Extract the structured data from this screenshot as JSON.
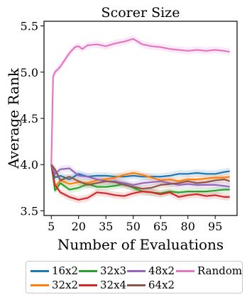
{
  "chart_data": {
    "type": "line",
    "title": "Scorer Size",
    "xlabel": "Number of Evaluations",
    "ylabel": "Average Rank",
    "xlim": [
      1,
      107
    ],
    "ylim": [
      3.45,
      5.55
    ],
    "xticks": [
      5,
      20,
      35,
      50,
      65,
      80,
      95
    ],
    "xtick_labels": [
      "5",
      "20",
      "35",
      "50",
      "65",
      "80",
      "95"
    ],
    "yticks": [
      3.5,
      4.0,
      4.5,
      5.0,
      5.5
    ],
    "ytick_labels": [
      "3.5",
      "4.0",
      "4.5",
      "5.0",
      "5.5"
    ],
    "grid": false,
    "legend_position": "bottom",
    "series": [
      {
        "name": "16x2",
        "color": "#1f77b4",
        "x": [
          5,
          7,
          10,
          15,
          20,
          25,
          30,
          35,
          40,
          45,
          50,
          55,
          60,
          65,
          70,
          75,
          80,
          85,
          90,
          95,
          100,
          103
        ],
        "y": [
          4.0,
          3.86,
          3.88,
          3.84,
          3.9,
          3.87,
          3.88,
          3.88,
          3.87,
          3.87,
          3.88,
          3.87,
          3.87,
          3.87,
          3.88,
          3.9,
          3.9,
          3.91,
          3.9,
          3.9,
          3.92,
          3.93
        ]
      },
      {
        "name": "32x2",
        "color": "#ff7f0e",
        "x": [
          5,
          7,
          10,
          15,
          20,
          25,
          30,
          35,
          40,
          45,
          50,
          55,
          60,
          65,
          70,
          75,
          80,
          85,
          90,
          95,
          100,
          103
        ],
        "y": [
          4.0,
          3.76,
          3.83,
          3.79,
          3.81,
          3.8,
          3.83,
          3.84,
          3.86,
          3.89,
          3.91,
          3.89,
          3.86,
          3.83,
          3.84,
          3.82,
          3.84,
          3.84,
          3.85,
          3.86,
          3.86,
          3.87
        ]
      },
      {
        "name": "32x3",
        "color": "#2ca02c",
        "x": [
          5,
          7,
          10,
          15,
          20,
          25,
          30,
          35,
          40,
          45,
          50,
          55,
          60,
          65,
          70,
          75,
          80,
          85,
          90,
          95,
          100,
          103
        ],
        "y": [
          4.0,
          3.72,
          3.8,
          3.73,
          3.75,
          3.79,
          3.76,
          3.76,
          3.77,
          3.79,
          3.75,
          3.71,
          3.7,
          3.69,
          3.71,
          3.7,
          3.71,
          3.71,
          3.71,
          3.72,
          3.73,
          3.73
        ]
      },
      {
        "name": "32x4",
        "color": "#d62728",
        "x": [
          5,
          7,
          10,
          15,
          20,
          25,
          30,
          35,
          40,
          45,
          50,
          55,
          60,
          65,
          70,
          75,
          80,
          85,
          90,
          95,
          100,
          103
        ],
        "y": [
          4.0,
          3.78,
          3.7,
          3.65,
          3.62,
          3.64,
          3.7,
          3.69,
          3.67,
          3.66,
          3.69,
          3.71,
          3.7,
          3.68,
          3.7,
          3.65,
          3.67,
          3.68,
          3.66,
          3.67,
          3.65,
          3.65
        ]
      },
      {
        "name": "48x2",
        "color": "#9467bd",
        "x": [
          5,
          7,
          10,
          15,
          20,
          25,
          30,
          35,
          40,
          45,
          50,
          55,
          60,
          65,
          70,
          75,
          80,
          85,
          90,
          95,
          100,
          103
        ],
        "y": [
          4.0,
          3.9,
          3.95,
          3.96,
          3.88,
          3.87,
          3.84,
          3.82,
          3.82,
          3.8,
          3.78,
          3.8,
          3.81,
          3.82,
          3.8,
          3.78,
          3.79,
          3.78,
          3.78,
          3.78,
          3.77,
          3.76
        ]
      },
      {
        "name": "64x2",
        "color": "#8c564b",
        "x": [
          5,
          7,
          10,
          15,
          20,
          25,
          30,
          35,
          40,
          45,
          50,
          55,
          60,
          65,
          70,
          75,
          80,
          85,
          90,
          95,
          100,
          103
        ],
        "y": [
          4.0,
          3.95,
          3.83,
          3.87,
          3.82,
          3.78,
          3.8,
          3.82,
          3.81,
          3.78,
          3.76,
          3.74,
          3.75,
          3.78,
          3.79,
          3.8,
          3.82,
          3.8,
          3.81,
          3.83,
          3.84,
          3.82
        ]
      },
      {
        "name": "Random",
        "color": "#e377c2",
        "x": [
          5,
          6,
          7,
          8,
          10,
          12,
          14,
          16,
          18,
          20,
          22,
          25,
          30,
          35,
          40,
          45,
          50,
          55,
          60,
          65,
          70,
          75,
          80,
          85,
          90,
          95,
          100,
          103
        ],
        "y": [
          4.0,
          4.95,
          5.0,
          5.02,
          5.06,
          5.12,
          5.18,
          5.23,
          5.27,
          5.28,
          5.25,
          5.29,
          5.3,
          5.28,
          5.31,
          5.33,
          5.36,
          5.3,
          5.28,
          5.27,
          5.25,
          5.24,
          5.23,
          5.24,
          5.23,
          5.24,
          5.23,
          5.22
        ]
      }
    ]
  }
}
